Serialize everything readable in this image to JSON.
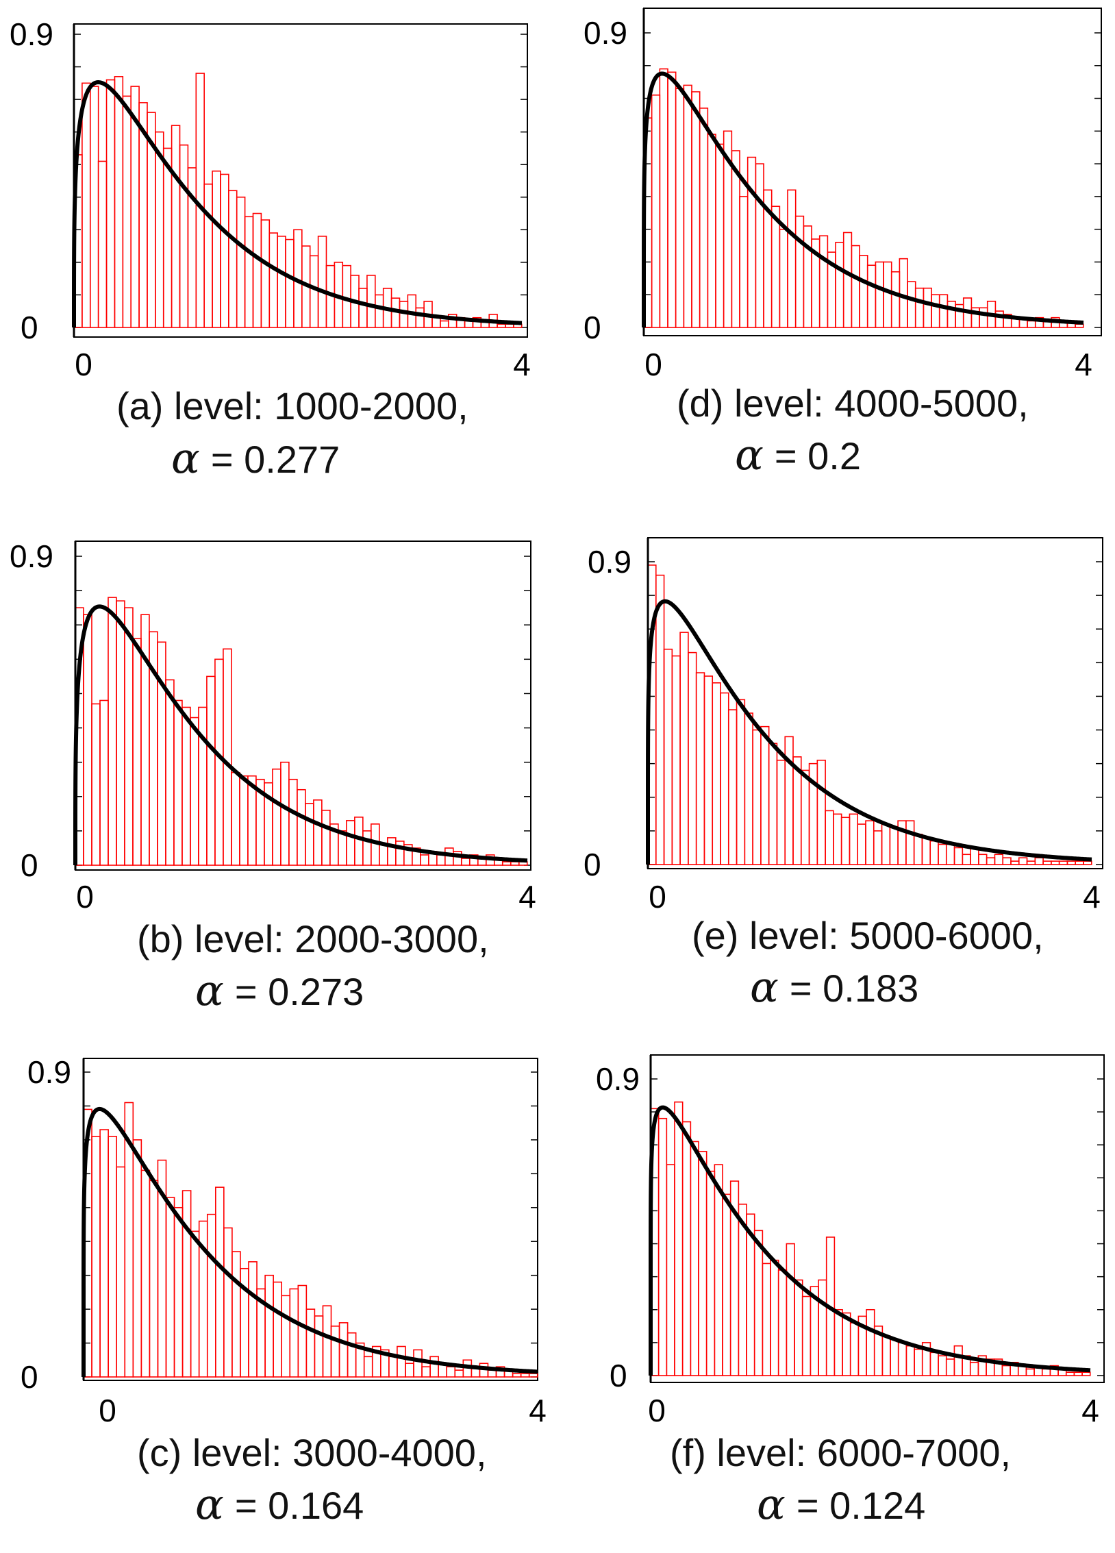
{
  "chart_data": [
    {
      "type": "histogram",
      "caption": "(a) level: 1000-2000,",
      "alpha_label": "α",
      "alpha_value": "= 0.277",
      "alpha": 0.277,
      "x_ticks": [
        "0",
        "4"
      ],
      "y_ticks": [
        "0",
        "0.9"
      ],
      "xlim": [
        0,
        4
      ],
      "ylim": [
        0,
        0.9
      ],
      "bin_width": 0.0727,
      "bars": [
        0.53,
        0.75,
        0.74,
        0.51,
        0.76,
        0.77,
        0.71,
        0.74,
        0.69,
        0.66,
        0.6,
        0.55,
        0.62,
        0.56,
        0.49,
        0.78,
        0.44,
        0.48,
        0.47,
        0.42,
        0.4,
        0.34,
        0.35,
        0.33,
        0.29,
        0.28,
        0.27,
        0.3,
        0.25,
        0.22,
        0.28,
        0.19,
        0.2,
        0.19,
        0.16,
        0.12,
        0.16,
        0.1,
        0.12,
        0.09,
        0.08,
        0.1,
        0.06,
        0.08,
        0.03,
        0.02,
        0.04,
        0.03,
        0.02,
        0.03,
        0.02,
        0.04,
        0.01,
        0.01,
        0.01
      ],
      "curve_color": "#000000",
      "bar_color": "#ff0000"
    },
    {
      "type": "histogram",
      "caption": "(b) level: 2000-3000,",
      "alpha_label": "α",
      "alpha_value": "= 0.273",
      "alpha": 0.273,
      "x_ticks": [
        "0",
        "4"
      ],
      "y_ticks": [
        "0",
        "0.9"
      ],
      "xlim": [
        0,
        4
      ],
      "ylim": [
        0,
        0.9
      ],
      "bin_width": 0.0727,
      "bars": [
        0.75,
        0.73,
        0.47,
        0.48,
        0.78,
        0.77,
        0.75,
        0.66,
        0.73,
        0.68,
        0.65,
        0.54,
        0.48,
        0.46,
        0.43,
        0.46,
        0.55,
        0.6,
        0.63,
        0.27,
        0.26,
        0.26,
        0.25,
        0.24,
        0.28,
        0.3,
        0.25,
        0.22,
        0.18,
        0.19,
        0.16,
        0.12,
        0.1,
        0.13,
        0.14,
        0.1,
        0.12,
        0.06,
        0.08,
        0.07,
        0.06,
        0.05,
        0.03,
        0.04,
        0.03,
        0.05,
        0.04,
        0.02,
        0.03,
        0.02,
        0.03,
        0.02,
        0.01,
        0.01,
        0.01
      ],
      "curve_color": "#000000",
      "bar_color": "#ff0000"
    },
    {
      "type": "histogram",
      "caption": "(c) level: 3000-4000,",
      "alpha_label": "α",
      "alpha_value": "= 0.164",
      "alpha": 0.164,
      "x_ticks": [
        "0",
        "4"
      ],
      "y_ticks": [
        "0",
        "0.9"
      ],
      "xlim": [
        0,
        4
      ],
      "ylim": [
        0,
        0.9
      ],
      "bin_width": 0.0727,
      "bars": [
        0.79,
        0.71,
        0.73,
        0.71,
        0.62,
        0.81,
        0.7,
        0.61,
        0.58,
        0.64,
        0.53,
        0.5,
        0.55,
        0.43,
        0.46,
        0.48,
        0.56,
        0.44,
        0.37,
        0.32,
        0.34,
        0.26,
        0.3,
        0.28,
        0.24,
        0.26,
        0.27,
        0.2,
        0.18,
        0.21,
        0.15,
        0.16,
        0.13,
        0.1,
        0.06,
        0.09,
        0.08,
        0.06,
        0.09,
        0.04,
        0.08,
        0.03,
        0.06,
        0.04,
        0.03,
        0.02,
        0.05,
        0.03,
        0.04,
        0.02,
        0.03,
        0.02,
        0.01,
        0.01,
        0.01
      ],
      "curve_color": "#000000",
      "bar_color": "#ff0000"
    },
    {
      "type": "histogram",
      "caption": "(d) level: 4000-5000,",
      "alpha_label": "α",
      "alpha_value": "= 0.2",
      "alpha": 0.2,
      "x_ticks": [
        "0",
        "4"
      ],
      "y_ticks": [
        "0",
        "0.9"
      ],
      "xlim": [
        0,
        4
      ],
      "ylim": [
        0,
        0.9
      ],
      "bin_width": 0.0727,
      "bars": [
        0.64,
        0.71,
        0.79,
        0.78,
        0.73,
        0.74,
        0.72,
        0.67,
        0.59,
        0.56,
        0.6,
        0.54,
        0.4,
        0.52,
        0.5,
        0.42,
        0.37,
        0.3,
        0.42,
        0.34,
        0.31,
        0.27,
        0.28,
        0.23,
        0.26,
        0.29,
        0.25,
        0.22,
        0.19,
        0.2,
        0.2,
        0.17,
        0.21,
        0.14,
        0.12,
        0.12,
        0.1,
        0.1,
        0.08,
        0.07,
        0.09,
        0.06,
        0.06,
        0.08,
        0.05,
        0.04,
        0.03,
        0.03,
        0.02,
        0.03,
        0.02,
        0.03,
        0.02,
        0.02,
        0.01
      ],
      "curve_color": "#000000",
      "bar_color": "#ff0000"
    },
    {
      "type": "histogram",
      "caption": "(e) level: 5000-6000,",
      "alpha_label": "α",
      "alpha_value": "= 0.183",
      "alpha": 0.183,
      "x_ticks": [
        "0",
        "4"
      ],
      "y_ticks": [
        "0",
        "0.9"
      ],
      "xlim": [
        0,
        4
      ],
      "ylim": [
        0,
        0.9
      ],
      "bin_width": 0.0727,
      "bars": [
        0.89,
        0.86,
        0.64,
        0.62,
        0.69,
        0.63,
        0.57,
        0.56,
        0.54,
        0.51,
        0.46,
        0.49,
        0.45,
        0.4,
        0.41,
        0.36,
        0.31,
        0.38,
        0.32,
        0.28,
        0.3,
        0.31,
        0.16,
        0.15,
        0.14,
        0.15,
        0.12,
        0.13,
        0.1,
        0.12,
        0.11,
        0.13,
        0.13,
        0.09,
        0.08,
        0.07,
        0.06,
        0.06,
        0.05,
        0.03,
        0.05,
        0.03,
        0.02,
        0.03,
        0.02,
        0.01,
        0.02,
        0.01,
        0.02,
        0.01,
        0.01,
        0.01,
        0.01,
        0.01,
        0.01
      ],
      "curve_color": "#000000",
      "bar_color": "#ff0000"
    },
    {
      "type": "histogram",
      "caption": "(f) level: 6000-7000,",
      "alpha_label": "α",
      "alpha_value": "= 0.124",
      "alpha": 0.124,
      "x_ticks": [
        "0",
        "4"
      ],
      "y_ticks": [
        "0",
        "0.9"
      ],
      "xlim": [
        0,
        4
      ],
      "ylim": [
        0,
        0.9
      ],
      "bin_width": 0.0727,
      "bars": [
        0.81,
        0.78,
        0.64,
        0.83,
        0.77,
        0.71,
        0.68,
        0.62,
        0.64,
        0.55,
        0.59,
        0.52,
        0.49,
        0.44,
        0.34,
        0.35,
        0.32,
        0.4,
        0.29,
        0.24,
        0.27,
        0.29,
        0.42,
        0.2,
        0.19,
        0.16,
        0.18,
        0.2,
        0.15,
        0.12,
        0.11,
        0.1,
        0.09,
        0.08,
        0.1,
        0.07,
        0.06,
        0.05,
        0.09,
        0.06,
        0.04,
        0.06,
        0.05,
        0.05,
        0.03,
        0.04,
        0.03,
        0.02,
        0.03,
        0.02,
        0.03,
        0.02,
        0.01,
        0.01,
        0.01
      ],
      "curve_color": "#000000",
      "bar_color": "#ff0000"
    }
  ]
}
